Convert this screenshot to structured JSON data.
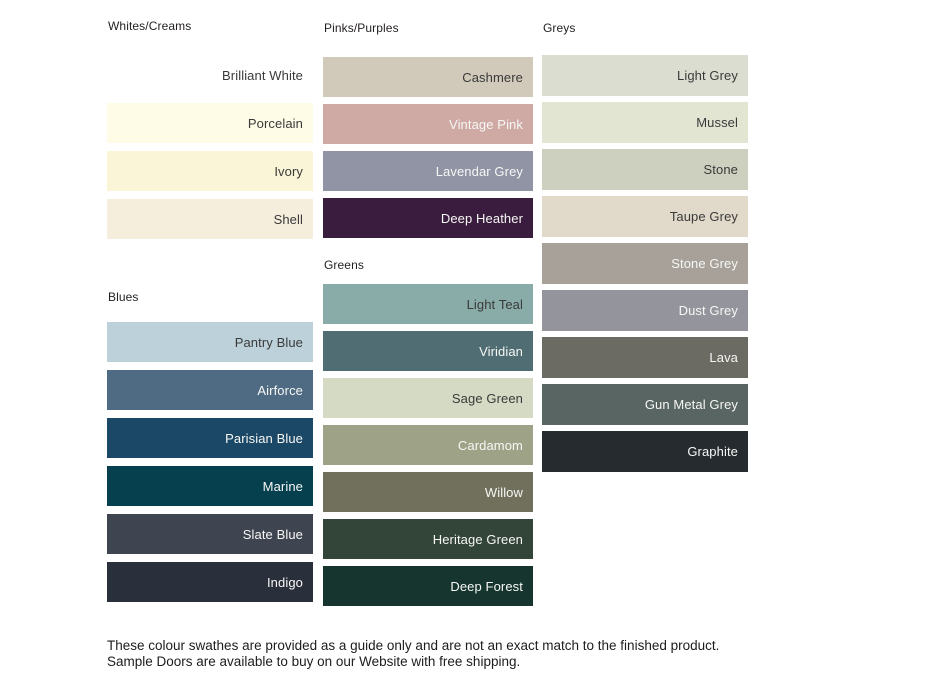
{
  "page": {
    "background": "#ffffff"
  },
  "columns": [
    {
      "sections": [
        {
          "title": "Whites/Creams",
          "swatches": [
            {
              "name": "Brilliant White",
              "color": "#ffffff",
              "label": "dark"
            },
            {
              "name": "Porcelain",
              "color": "#fefbe7",
              "label": "dark"
            },
            {
              "name": "Ivory",
              "color": "#faf5d7",
              "label": "dark"
            },
            {
              "name": "Shell",
              "color": "#f6eedd",
              "label": "dark"
            }
          ]
        },
        {
          "title": "Blues",
          "swatches": [
            {
              "name": "Pantry Blue",
              "color": "#bcd1d9",
              "label": "dark"
            },
            {
              "name": "Airforce",
              "color": "#4e6b83",
              "label": "light"
            },
            {
              "name": "Parisian Blue",
              "color": "#1b4866",
              "label": "light"
            },
            {
              "name": "Marine",
              "color": "#06404f",
              "label": "light"
            },
            {
              "name": "Slate Blue",
              "color": "#3f4550",
              "label": "light"
            },
            {
              "name": "Indigo",
              "color": "#2a303b",
              "label": "light"
            }
          ]
        }
      ]
    },
    {
      "sections": [
        {
          "title": "Pinks/Purples",
          "swatches": [
            {
              "name": "Cashmere",
              "color": "#d1caba",
              "label": "dark"
            },
            {
              "name": "Vintage Pink",
              "color": "#cfa9a4",
              "label": "light"
            },
            {
              "name": "Lavendar Grey",
              "color": "#9094a5",
              "label": "light"
            },
            {
              "name": "Deep Heather",
              "color": "#3a1c3e",
              "label": "light"
            }
          ]
        },
        {
          "title": "Greens",
          "swatches": [
            {
              "name": "Light Teal",
              "color": "#8aaca9",
              "label": "dark"
            },
            {
              "name": "Viridian",
              "color": "#4f6d72",
              "label": "light"
            },
            {
              "name": "Sage Green",
              "color": "#d4dac4",
              "label": "dark"
            },
            {
              "name": "Cardamom",
              "color": "#9ea287",
              "label": "light"
            },
            {
              "name": "Willow",
              "color": "#70705c",
              "label": "light"
            },
            {
              "name": "Heritage Green",
              "color": "#334438",
              "label": "light"
            },
            {
              "name": "Deep Forest",
              "color": "#16352e",
              "label": "light"
            }
          ]
        }
      ]
    },
    {
      "sections": [
        {
          "title": "Greys",
          "swatches": [
            {
              "name": "Light Grey",
              "color": "#dcddd1",
              "label": "dark"
            },
            {
              "name": "Mussel",
              "color": "#e3e5d3",
              "label": "dark"
            },
            {
              "name": "Stone",
              "color": "#cdd0be",
              "label": "dark"
            },
            {
              "name": "Taupe Grey",
              "color": "#e1daca",
              "label": "dark"
            },
            {
              "name": "Stone Grey",
              "color": "#a7a199",
              "label": "light"
            },
            {
              "name": "Dust Grey",
              "color": "#94959c",
              "label": "light"
            },
            {
              "name": "Lava",
              "color": "#6b6b63",
              "label": "light"
            },
            {
              "name": "Gun Metal Grey",
              "color": "#586562",
              "label": "light"
            },
            {
              "name": "Graphite",
              "color": "#262b30",
              "label": "light"
            }
          ]
        }
      ]
    }
  ],
  "footer": {
    "text": "These colour swathes are provided as a guide only and are not an exact match to the finished product.  Sample Doors are available to buy on our Website with free shipping."
  }
}
